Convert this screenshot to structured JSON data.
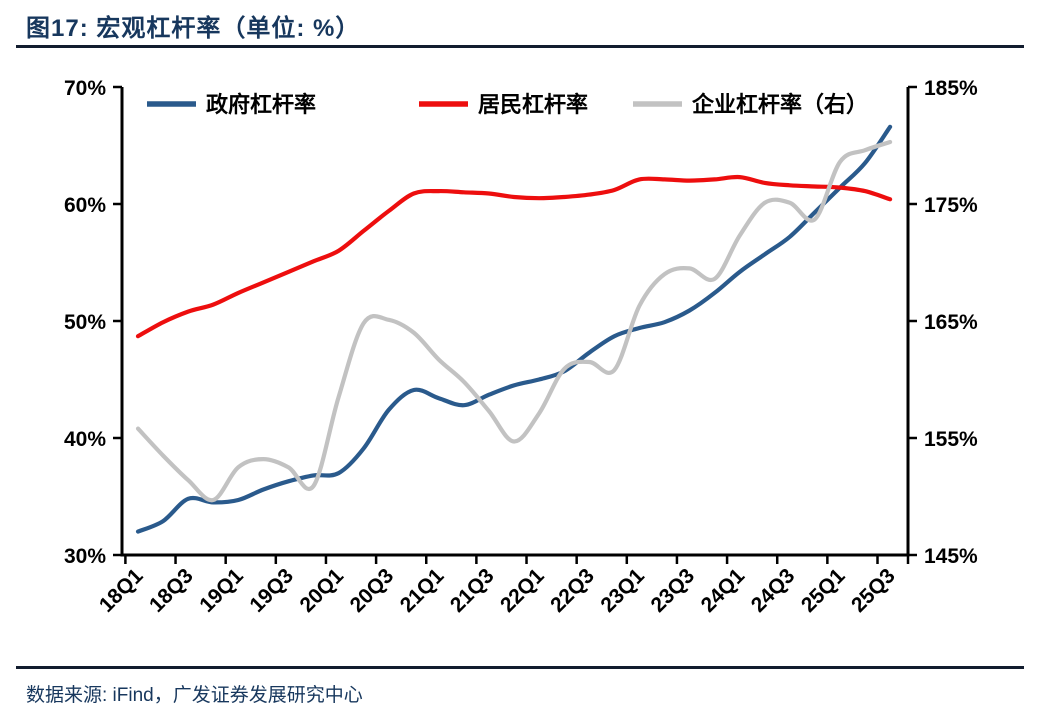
{
  "header": {
    "title": "图17:  宏观杠杆率（单位: %）"
  },
  "footer": {
    "source": "数据来源: iFind，广发证券发展研究中心"
  },
  "colors": {
    "government": "#2A5A8C",
    "household": "#ED0E0E",
    "corporate": "#C2C2C2",
    "axis": "#000000",
    "title_navy": "#17375D"
  },
  "chart_data": {
    "type": "line",
    "title": "宏观杠杆率（单位: %）",
    "legend_position": "top-inside",
    "grid": false,
    "categories": [
      "18Q1",
      "18Q2",
      "18Q3",
      "18Q4",
      "19Q1",
      "19Q2",
      "19Q3",
      "19Q4",
      "20Q1",
      "20Q2",
      "20Q3",
      "20Q4",
      "21Q1",
      "21Q2",
      "21Q3",
      "21Q4",
      "22Q1",
      "22Q2",
      "22Q3",
      "22Q4",
      "23Q1",
      "23Q2",
      "23Q3",
      "23Q4",
      "24Q1",
      "24Q2",
      "24Q3",
      "24Q4",
      "25Q1",
      "25Q2",
      "25Q3"
    ],
    "x_tick_labels": [
      "18Q1",
      "18Q3",
      "19Q1",
      "19Q3",
      "20Q1",
      "20Q3",
      "21Q1",
      "21Q3",
      "22Q1",
      "22Q3",
      "23Q1",
      "23Q3",
      "24Q1",
      "24Q3",
      "25Q1",
      "25Q3"
    ],
    "left_axis": {
      "min": 30,
      "max": 70,
      "tick_labels": [
        "70%",
        "60%",
        "50%",
        "40%",
        "30%"
      ]
    },
    "right_axis": {
      "min": 145,
      "max": 185,
      "tick_labels": [
        "185%",
        "175%",
        "165%",
        "155%",
        "145%"
      ]
    },
    "series": [
      {
        "name": "政府杠杆率",
        "id": "government-leverage",
        "axis": "left",
        "color": "#2A5A8C",
        "values": [
          32.0,
          32.9,
          34.8,
          34.5,
          34.7,
          35.6,
          36.3,
          36.8,
          37.0,
          39.1,
          42.4,
          44.1,
          43.4,
          42.8,
          43.7,
          44.5,
          45.0,
          45.7,
          47.3,
          48.7,
          49.4,
          49.9,
          50.9,
          52.4,
          54.2,
          55.7,
          57.2,
          59.3,
          61.4,
          63.5,
          66.6
        ]
      },
      {
        "name": "居民杠杆率",
        "id": "household-leverage",
        "axis": "left",
        "color": "#ED0E0E",
        "values": [
          48.7,
          49.9,
          50.8,
          51.4,
          52.4,
          53.3,
          54.2,
          55.1,
          56.0,
          57.7,
          59.4,
          60.9,
          61.1,
          61.0,
          60.9,
          60.6,
          60.5,
          60.6,
          60.8,
          61.2,
          62.1,
          62.1,
          62.0,
          62.1,
          62.3,
          61.8,
          61.6,
          61.5,
          61.4,
          61.1,
          60.4
        ]
      },
      {
        "name": "企业杠杆率（右）",
        "id": "corporate-leverage",
        "axis": "right",
        "color": "#C2C2C2",
        "values": [
          155.8,
          153.5,
          151.4,
          149.7,
          152.5,
          153.2,
          152.5,
          150.9,
          158.5,
          164.8,
          165.1,
          164.0,
          161.7,
          159.8,
          157.3,
          154.7,
          157.1,
          160.9,
          161.5,
          160.8,
          166.3,
          169.0,
          169.5,
          168.6,
          172.3,
          175.1,
          175.1,
          173.7,
          178.6,
          179.6,
          180.3
        ]
      }
    ]
  }
}
